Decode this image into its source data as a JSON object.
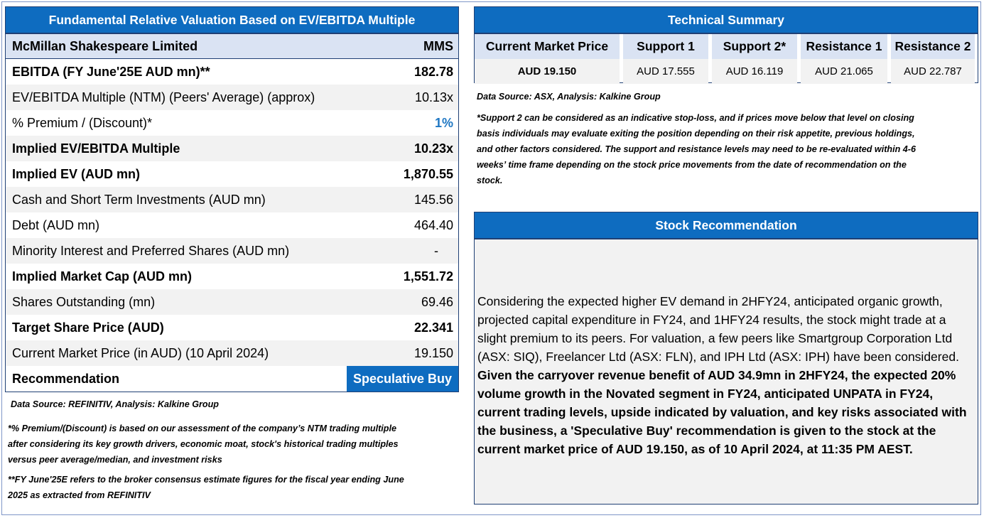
{
  "valuation": {
    "title": "Fundamental Relative Valuation Based on EV/EBITDA Multiple",
    "company": "McMillan Shakespeare Limited",
    "ticker": "MMS",
    "rows": [
      {
        "label": "EBITDA (FY June'25E AUD mn)**",
        "value": "182.78"
      },
      {
        "label": "EV/EBITDA Multiple (NTM)  (Peers' Average) (approx)",
        "value": "10.13x"
      },
      {
        "label": "% Premium / (Discount)*",
        "value": "1%"
      },
      {
        "label": "Implied EV/EBITDA Multiple",
        "value": "10.23x"
      },
      {
        "label": "Implied EV (AUD mn)",
        "value": "1,870.55"
      },
      {
        "label": "Cash and Short Term Investments (AUD mn)",
        "value": "145.56"
      },
      {
        "label": "Debt (AUD mn)",
        "value": "464.40"
      },
      {
        "label": "Minority Interest and Preferred Shares (AUD mn)",
        "value": "-"
      },
      {
        "label": "Implied Market Cap (AUD mn)",
        "value": "1,551.72"
      },
      {
        "label": "Shares Outstanding (mn)",
        "value": "69.46"
      },
      {
        "label": "Target Share Price (AUD)",
        "value": "22.341"
      },
      {
        "label": "Current Market Price (in AUD) (10 April 2024)",
        "value": "19.150"
      }
    ],
    "recommendation_label": "Recommendation",
    "recommendation_value": "Speculative Buy",
    "source": "Data Source: REFINITIV, Analysis: Kalkine Group",
    "note1_line1": "*% Premium/(Discount) is based on our assessment of the company’s NTM trading multiple",
    "note1_line2": "after considering its key growth drivers, economic moat, stock's historical trading multiples",
    "note1_line3": "versus peer average/median, and investment risks",
    "note2_line1": "**FY June'25E refers to the broker consensus estimate figures for the fiscal year ending June",
    "note2_line2": "2025 as extracted from REFINITIV"
  },
  "technical": {
    "title": "Technical Summary",
    "columns": [
      {
        "header": "Current Market Price",
        "value": "AUD 19.150"
      },
      {
        "header": "Support 1",
        "value": "AUD 17.555"
      },
      {
        "header": "Support 2*",
        "value": "AUD 16.119"
      },
      {
        "header": "Resistance 1",
        "value": "AUD 21.065"
      },
      {
        "header": "Resistance 2",
        "value": "AUD 22.787"
      }
    ],
    "source": "Data Source: ASX, Analysis: Kalkine Group",
    "note_line1": "*Support 2 can be considered as an indicative stop-loss, and if prices move below that level on closing",
    "note_line2": "basis individuals may evaluate exiting the position depending on their risk appetite, previous holdings,",
    "note_line3": "and other factors considered. The support and resistance levels may need to be re-evaluated within 4-6",
    "note_line4": "weeks’ time frame depending on the stock price movements from the date of recommendation on the",
    "note_line5": "stock."
  },
  "stock_recommendation": {
    "title": "Stock Recommendation",
    "text_plain": "Considering the expected higher EV demand in 2HFY24, anticipated organic growth, projected capital expenditure in FY24, and 1HFY24 results, the stock might trade at a slight premium to its peers. For valuation, a few peers like Smartgroup Corporation Ltd (ASX: SIQ), Freelancer Ltd (ASX: FLN), and IPH Ltd (ASX: IPH) have been considered.",
    "text_bold": "Given the carryover revenue benefit of AUD 34.9mn in 2HFY24, the expected 20% volume growth in the Novated segment in FY24, anticipated UNPATA in FY24, current trading levels, upside indicated by valuation, and key risks associated with the business, a 'Speculative Buy' recommendation is given to the stock at the current market price of AUD 19.150, as of 10 April 2024, at 11:35 PM AEST."
  },
  "colors": {
    "header_blue": "#0e6cc0",
    "light_blue": "#dae3f3",
    "row_grey": "#f2f2f2",
    "premium_blue": "#1f77c3"
  }
}
